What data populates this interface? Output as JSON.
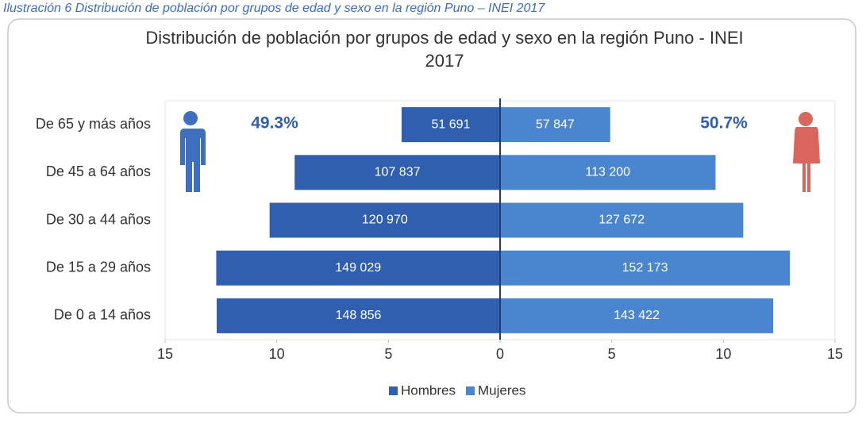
{
  "caption": "Ilustración 6 Distribución de población por grupos de edad y sexo en la región Puno – INEI 2017",
  "chart_data": {
    "type": "pyramid",
    "title": [
      "Distribución de población por grupos de edad y sexo en la región Puno - INEI",
      "2017"
    ],
    "categories": [
      "De 65 y más años",
      "De 45 a 64 años",
      "De 30 a 44 años",
      "De 15 a 29 años",
      "De 0  a 14 años"
    ],
    "series": [
      {
        "name": "Hombres",
        "color": "#2f5fae",
        "values": [
          -4.41,
          -9.2,
          -10.32,
          -12.71,
          -12.69
        ],
        "count_labels": [
          "51 691",
          "107 837",
          "120 970",
          "149 029",
          "148 856"
        ]
      },
      {
        "name": "Mujeres",
        "color": "#4a86d0",
        "values": [
          4.93,
          9.65,
          10.89,
          12.98,
          12.23
        ],
        "count_labels": [
          "57 847",
          "113 200",
          "127 672",
          "152 173",
          "143 422"
        ]
      }
    ],
    "annotations": [
      "49.3%",
      "50.7%"
    ],
    "xlim": [
      -15,
      15
    ],
    "xticks": [
      {
        "value": -15,
        "label": "15"
      },
      {
        "value": -10,
        "label": "10"
      },
      {
        "value": -5,
        "label": "5"
      },
      0,
      5,
      10,
      15
    ],
    "legend": "bottom"
  }
}
